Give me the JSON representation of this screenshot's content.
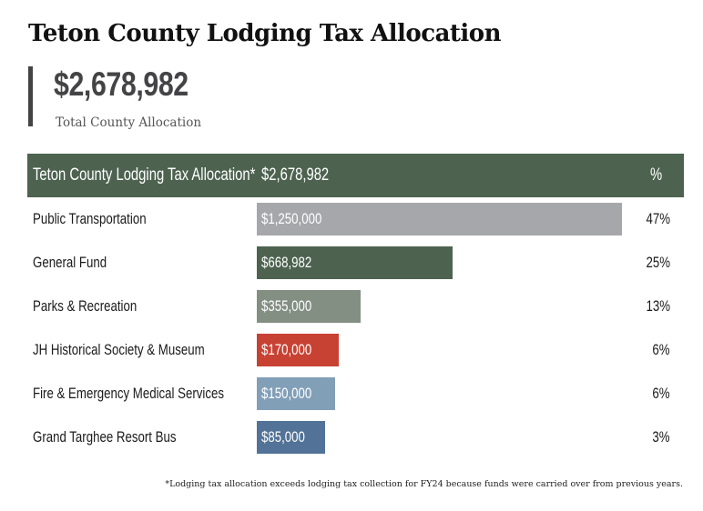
{
  "title": "Teton County Lodging Tax Allocation",
  "kpi": {
    "value": "$2,678,982",
    "label": "Total County Allocation"
  },
  "colors": {
    "header": "#4d6350",
    "kpi_rule": "#444446"
  },
  "chart_data": {
    "type": "bar",
    "orientation": "horizontal",
    "title": "Teton County Lodging Tax Allocation*",
    "header": {
      "label": "Teton County Lodging Tax Allocation*",
      "total": "$2,678,982",
      "pct_label": "%"
    },
    "categories": [
      "Public Transportation",
      "General Fund",
      "Parks & Recreation",
      "JH Historical Society & Museum",
      "Fire & Emergency Medical Services",
      "Grand Targhee Resort Bus"
    ],
    "values": [
      1250000,
      668982,
      355000,
      170000,
      150000,
      85000
    ],
    "value_labels": [
      "$1,250,000",
      "$668,982",
      "$355,000",
      "$170,000",
      "$150,000",
      "$85,000"
    ],
    "percents": [
      "47%",
      "25%",
      "13%",
      "6%",
      "6%",
      "3%"
    ],
    "bar_colors": [
      "#a6a7ab",
      "#4d6350",
      "#848f84",
      "#c84233",
      "#829fb8",
      "#527297"
    ],
    "xlim": [
      0,
      1250000
    ],
    "grid": false,
    "legend": "none"
  },
  "footnote": "*Lodging tax allocation exceeds lodging tax  collection for FY24 because funds were carried over from previous years."
}
